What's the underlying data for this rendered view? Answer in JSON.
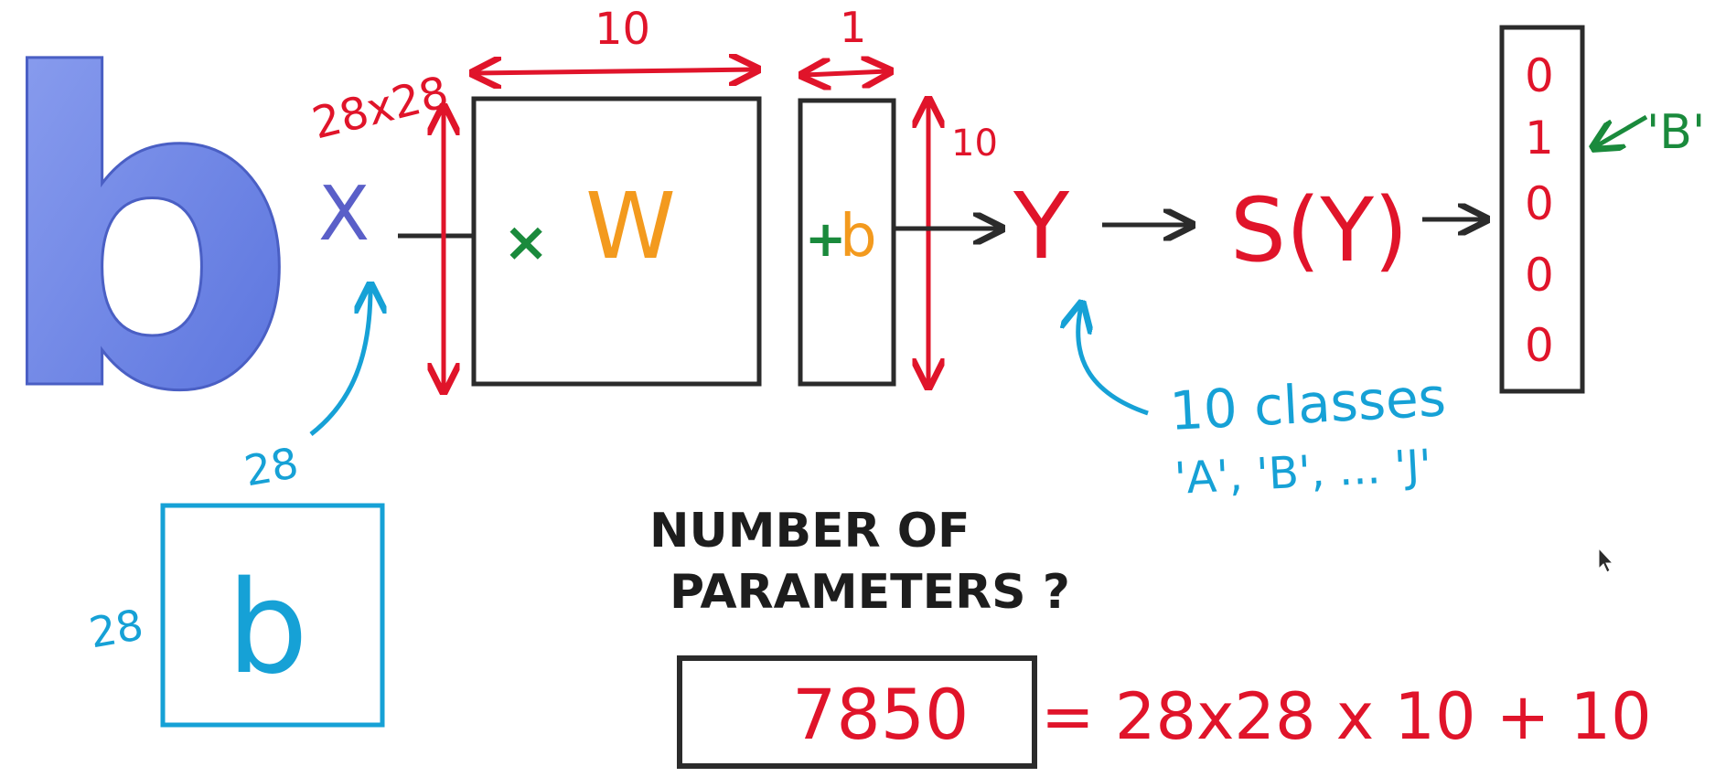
{
  "colors": {
    "red": "#e0142a",
    "blue": "#16a1d6",
    "orange": "#f39a1e",
    "green": "#1a8a3c",
    "purple": "#5a5fc8",
    "dark": "#1d1d1d",
    "letter_fill": "#6f86e6"
  },
  "input": {
    "letter_logo_text": "b",
    "x_label": "X",
    "size_label": "28x28",
    "image_letter": "b",
    "image_width": "28",
    "image_height": "28"
  },
  "weights": {
    "times_symbol": "×",
    "w_label": "W",
    "width_label": "10"
  },
  "bias": {
    "plus_symbol": "+",
    "b_label": "b",
    "width_label": "1",
    "height_label": "10"
  },
  "output": {
    "y_label": "Y",
    "softmax_label": "S(Y)",
    "vector": [
      "0",
      "1",
      "0",
      "0",
      "0"
    ],
    "target_label": "'B'"
  },
  "classes_note": {
    "line1": "10 classes",
    "line2": "'A', 'B', ... 'J'"
  },
  "question": {
    "line1": "NUMBER OF",
    "line2": "PARAMETERS ?"
  },
  "answer": {
    "value": "7850",
    "formula": "= 28x28 x 10 + 10"
  }
}
